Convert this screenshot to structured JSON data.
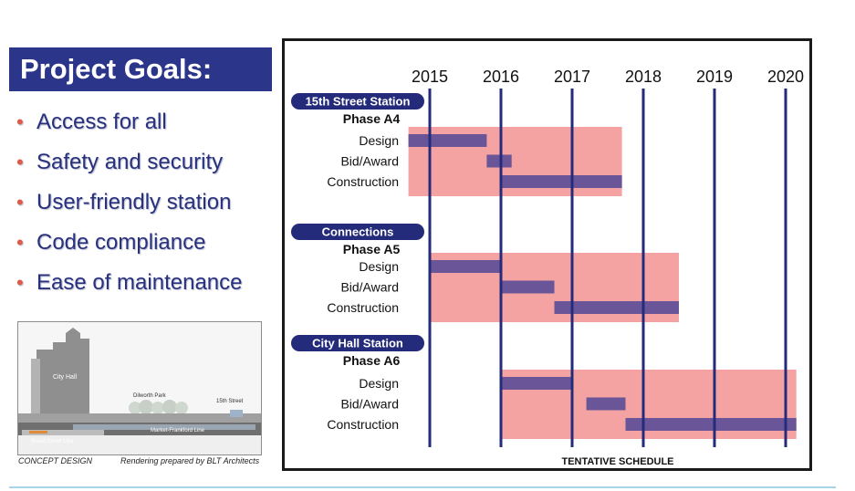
{
  "goals": {
    "title": "Project Goals:",
    "items": [
      "Access for all",
      "Safety and security",
      "User-friendly station",
      "Code compliance",
      "Ease of maintenance"
    ]
  },
  "concept": {
    "caption": "CONCEPT DESIGN",
    "credit": "Rendering prepared by BLT Architects",
    "labels": {
      "city_hall": "City Hall",
      "dilworth": "Dilworth Park",
      "fifteenth": "15th Street",
      "mfl": "Market-Frankford Line",
      "bsl": "Broad Street Line"
    }
  },
  "chart_data": {
    "type": "gantt",
    "title": "",
    "footer": "TENTATIVE SCHEDULE",
    "years": [
      "2015",
      "2016",
      "2017",
      "2018",
      "2019",
      "2020"
    ],
    "xlim": [
      2014.7,
      2020.15
    ],
    "colors": {
      "phase": "#f4a3a2",
      "task": "#6b5599",
      "year_line": "#232b7a",
      "header": "#232b7a"
    },
    "groups": [
      {
        "name": "15th Street Station",
        "phase": "Phase A4",
        "phase_span": [
          2014.7,
          2017.7
        ],
        "tasks": [
          {
            "label": "Design",
            "start": 2014.7,
            "end": 2015.8
          },
          {
            "label": "Bid/Award",
            "start": 2015.8,
            "end": 2016.15
          },
          {
            "label": "Construction",
            "start": 2016.0,
            "end": 2017.7
          }
        ]
      },
      {
        "name": "Connections",
        "phase": "Phase A5",
        "phase_span": [
          2015.0,
          2018.5
        ],
        "tasks": [
          {
            "label": "Design",
            "start": 2015.0,
            "end": 2016.0
          },
          {
            "label": "Bid/Award",
            "start": 2016.0,
            "end": 2016.75
          },
          {
            "label": "Construction",
            "start": 2016.75,
            "end": 2018.5
          }
        ]
      },
      {
        "name": "City Hall Station",
        "phase": "Phase A6",
        "phase_span": [
          2016.0,
          2020.15
        ],
        "tasks": [
          {
            "label": "Design",
            "start": 2016.0,
            "end": 2017.0
          },
          {
            "label": "Bid/Award",
            "start": 2017.2,
            "end": 2017.75
          },
          {
            "label": "Construction",
            "start": 2017.75,
            "end": 2020.15
          }
        ]
      }
    ]
  }
}
